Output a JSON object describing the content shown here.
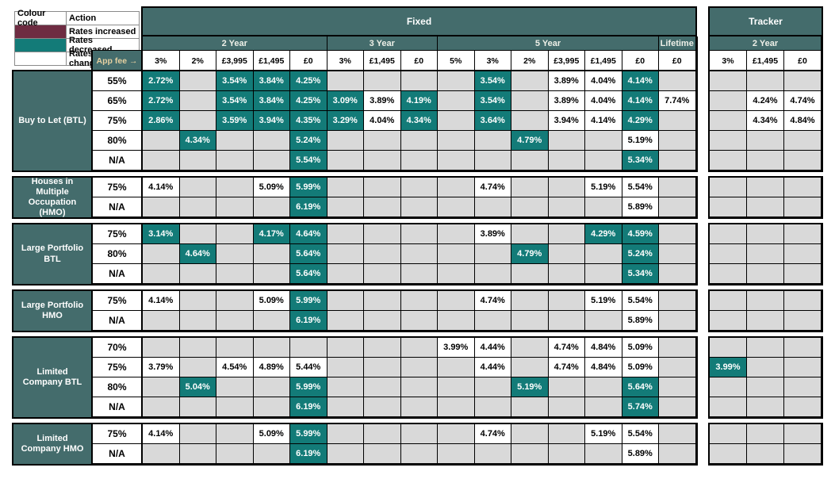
{
  "colors": {
    "header_teal": "#446c6c",
    "decreased_teal": "#137b78",
    "increased_maroon": "#6e2c42",
    "empty_grey": "#d9d9d9",
    "year_label_text": "#eef0e8",
    "app_fee_text": "#e5d0a1"
  },
  "legend": {
    "columns": [
      "Colour code",
      "Action"
    ],
    "rows": [
      {
        "label": "Rates increased",
        "color": "#6e2c42"
      },
      {
        "label": "Rates decreased",
        "color": "#137b78"
      },
      {
        "label": "Rates not changed",
        "color": "#ffffff"
      }
    ]
  },
  "header": {
    "fixed_label": "Fixed",
    "tracker_label": "Tracker",
    "app_fee_label": "App fee →",
    "fixed_groups": [
      {
        "label": "2 Year",
        "fees": [
          "3%",
          "2%",
          "£3,995",
          "£1,495",
          "£0"
        ]
      },
      {
        "label": "3 Year",
        "fees": [
          "3%",
          "£1,495",
          "£0"
        ]
      },
      {
        "label": "5 Year",
        "fees": [
          "5%",
          "3%",
          "2%",
          "£3,995",
          "£1,495",
          "£0"
        ]
      },
      {
        "label": "Lifetime",
        "fees": [
          "£0"
        ]
      }
    ],
    "tracker_groups": [
      {
        "label": "2 Year",
        "fees": [
          "3%",
          "£1,495",
          "£0"
        ]
      }
    ]
  },
  "blocks": [
    {
      "label": "Buy to Let (BTL)",
      "rows": [
        {
          "ltv": "55%",
          "fixed": [
            "2.72%*",
            "",
            "3.54%*",
            "3.84%*",
            "4.25%*",
            "",
            "",
            "",
            "",
            "3.54%*",
            "",
            "3.89%",
            "4.04%",
            "4.14%*",
            ""
          ],
          "tracker": [
            "",
            "",
            ""
          ]
        },
        {
          "ltv": "65%",
          "fixed": [
            "2.72%*",
            "",
            "3.54%*",
            "3.84%*",
            "4.25%*",
            "3.09%*",
            "3.89%",
            "4.19%*",
            "",
            "3.54%*",
            "",
            "3.89%",
            "4.04%",
            "4.14%*",
            "7.74%"
          ],
          "tracker": [
            "",
            "4.24%",
            "4.74%"
          ]
        },
        {
          "ltv": "75%",
          "fixed": [
            "2.86%*",
            "",
            "3.59%*",
            "3.94%*",
            "4.35%*",
            "3.29%*",
            "4.04%",
            "4.34%*",
            "",
            "3.64%*",
            "",
            "3.94%",
            "4.14%",
            "4.29%*",
            ""
          ],
          "tracker": [
            "",
            "4.34%",
            "4.84%"
          ]
        },
        {
          "ltv": "80%",
          "fixed": [
            "",
            "4.34%*",
            "",
            "",
            "5.24%*",
            "",
            "",
            "",
            "",
            "",
            "4.79%*",
            "",
            "",
            "5.19%",
            ""
          ],
          "tracker": [
            "",
            "",
            ""
          ]
        },
        {
          "ltv": "N/A",
          "fixed": [
            "",
            "",
            "",
            "",
            "5.54%*",
            "",
            "",
            "",
            "",
            "",
            "",
            "",
            "",
            "5.34%*",
            ""
          ],
          "tracker": [
            "",
            "",
            ""
          ]
        }
      ]
    },
    {
      "label": "Houses in Multiple Occupation (HMO)",
      "rows": [
        {
          "ltv": "75%",
          "fixed": [
            "4.14%",
            "",
            "",
            "5.09%",
            "5.99%*",
            "",
            "",
            "",
            "",
            "4.74%",
            "",
            "",
            "5.19%",
            "5.54%",
            ""
          ],
          "tracker": [
            "",
            "",
            ""
          ]
        },
        {
          "ltv": "N/A",
          "fixed": [
            "",
            "",
            "",
            "",
            "6.19%*",
            "",
            "",
            "",
            "",
            "",
            "",
            "",
            "",
            "5.89%",
            ""
          ],
          "tracker": [
            "",
            "",
            ""
          ]
        }
      ]
    },
    {
      "label": "Large Portfolio BTL",
      "rows": [
        {
          "ltv": "75%",
          "fixed": [
            "3.14%*",
            "",
            "",
            "4.17%*",
            "4.64%*",
            "",
            "",
            "",
            "",
            "3.89%",
            "",
            "",
            "4.29%*",
            "4.59%*",
            ""
          ],
          "tracker": [
            "",
            "",
            ""
          ]
        },
        {
          "ltv": "80%",
          "fixed": [
            "",
            "4.64%*",
            "",
            "",
            "5.64%*",
            "",
            "",
            "",
            "",
            "",
            "4.79%*",
            "",
            "",
            "5.24%*",
            ""
          ],
          "tracker": [
            "",
            "",
            ""
          ]
        },
        {
          "ltv": "N/A",
          "fixed": [
            "",
            "",
            "",
            "",
            "5.64%*",
            "",
            "",
            "",
            "",
            "",
            "",
            "",
            "",
            "5.34%*",
            ""
          ],
          "tracker": [
            "",
            "",
            ""
          ]
        }
      ]
    },
    {
      "label": "Large Portfolio HMO",
      "rows": [
        {
          "ltv": "75%",
          "fixed": [
            "4.14%",
            "",
            "",
            "5.09%",
            "5.99%*",
            "",
            "",
            "",
            "",
            "4.74%",
            "",
            "",
            "5.19%",
            "5.54%",
            ""
          ],
          "tracker": [
            "",
            "",
            ""
          ]
        },
        {
          "ltv": "N/A",
          "fixed": [
            "",
            "",
            "",
            "",
            "6.19%*",
            "",
            "",
            "",
            "",
            "",
            "",
            "",
            "",
            "5.89%",
            ""
          ],
          "tracker": [
            "",
            "",
            ""
          ]
        }
      ]
    },
    {
      "label": "Limited Company BTL",
      "rows": [
        {
          "ltv": "70%",
          "fixed": [
            "",
            "",
            "",
            "",
            "",
            "",
            "",
            "",
            "3.99%",
            "4.44%",
            "",
            "4.74%",
            "4.84%",
            "5.09%",
            ""
          ],
          "tracker": [
            "",
            "",
            ""
          ]
        },
        {
          "ltv": "75%",
          "fixed": [
            "3.79%",
            "",
            "4.54%",
            "4.89%",
            "5.44%",
            "",
            "",
            "",
            "",
            "4.44%",
            "",
            "4.74%",
            "4.84%",
            "5.09%",
            ""
          ],
          "tracker": [
            "3.99%*",
            "",
            ""
          ]
        },
        {
          "ltv": "80%",
          "fixed": [
            "",
            "5.04%*",
            "",
            "",
            "5.99%*",
            "",
            "",
            "",
            "",
            "",
            "5.19%*",
            "",
            "",
            "5.64%*",
            ""
          ],
          "tracker": [
            "",
            "",
            ""
          ]
        },
        {
          "ltv": "N/A",
          "fixed": [
            "",
            "",
            "",
            "",
            "6.19%*",
            "",
            "",
            "",
            "",
            "",
            "",
            "",
            "",
            "5.74%*",
            ""
          ],
          "tracker": [
            "",
            "",
            ""
          ]
        }
      ]
    },
    {
      "label": "Limited Company HMO",
      "rows": [
        {
          "ltv": "75%",
          "fixed": [
            "4.14%",
            "",
            "",
            "5.09%",
            "5.99%*",
            "",
            "",
            "",
            "",
            "4.74%",
            "",
            "",
            "5.19%",
            "5.54%",
            ""
          ],
          "tracker": [
            "",
            "",
            ""
          ]
        },
        {
          "ltv": "N/A",
          "fixed": [
            "",
            "",
            "",
            "",
            "6.19%*",
            "",
            "",
            "",
            "",
            "",
            "",
            "",
            "",
            "5.89%",
            ""
          ],
          "tracker": [
            "",
            "",
            ""
          ]
        }
      ]
    }
  ]
}
